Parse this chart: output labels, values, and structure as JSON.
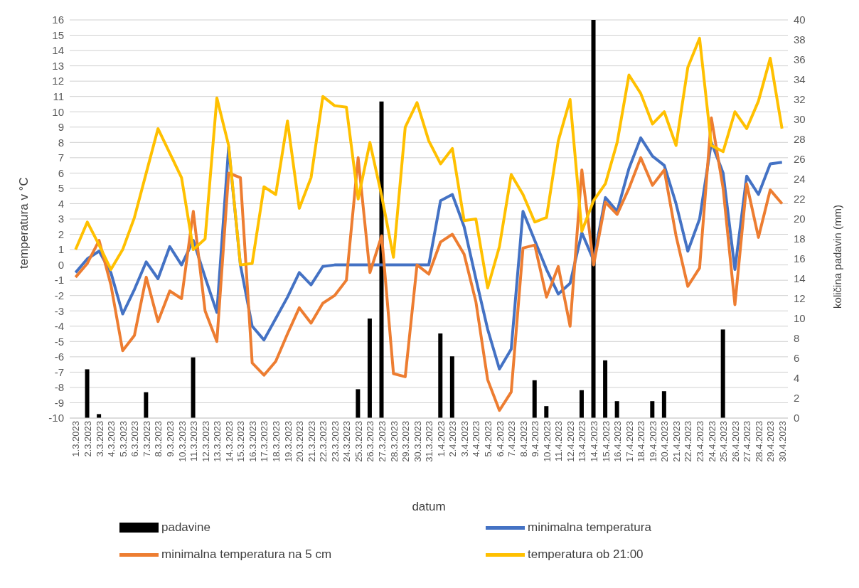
{
  "chart_data": {
    "type": "line",
    "xlabel": "datum",
    "ylabel": "temperatura v °C",
    "y2label": "količina padavin (mm)",
    "categories": [
      "1.3.2023",
      "2.3.2023",
      "3.3.2023",
      "4.3.2023",
      "5.3.2023",
      "6.3.2023",
      "7.3.2023",
      "8.3.2023",
      "9.3.2023",
      "10.3.2023",
      "11.3.2023",
      "12.3.2023",
      "13.3.2023",
      "14.3.2023",
      "15.3.2023",
      "16.3.2023",
      "17.3.2023",
      "18.3.2023",
      "19.3.2023",
      "20.3.2023",
      "21.3.2023",
      "22.3.2023",
      "23.3.2023",
      "24.3.2023",
      "25.3.2023",
      "26.3.2023",
      "27.3.2023",
      "28.3.2023",
      "29.3.2023",
      "30.3.2023",
      "31.3.2023",
      "1.4.2023",
      "2.4.2023",
      "3.4.2023",
      "4.4.2023",
      "5.4.2023",
      "6.4.2023",
      "7.4.2023",
      "8.4.2023",
      "9.4.2023",
      "10.4.2023",
      "11.4.2023",
      "12.4.2023",
      "13.4.2023",
      "14.4.2023",
      "15.4.2023",
      "16.4.2023",
      "17.4.2023",
      "18.4.2023",
      "19.4.2023",
      "20.4.2023",
      "21.4.2023",
      "22.4.2023",
      "23.4.2023",
      "24.4.2023",
      "25.4.2023",
      "26.4.2023",
      "27.4.2023",
      "28.4.2023",
      "29.4.2023",
      "30.4.2023"
    ],
    "series": [
      {
        "name": "padavine",
        "type": "bar",
        "axis": "y2",
        "color": "#000000",
        "values": [
          0,
          4.9,
          0.4,
          0,
          0,
          0,
          2.6,
          0,
          0,
          0,
          6.1,
          0,
          0,
          0,
          0,
          0,
          0,
          0,
          0,
          0,
          0,
          0,
          0,
          0,
          2.9,
          10.0,
          31.8,
          0,
          0,
          0,
          0,
          8.5,
          6.2,
          0,
          0,
          0,
          0,
          0,
          0,
          3.8,
          1.2,
          0,
          0,
          2.8,
          40,
          5.8,
          1.7,
          0,
          0,
          1.7,
          2.7,
          0,
          0,
          0,
          0,
          8.9,
          0,
          0,
          0,
          0,
          0
        ]
      },
      {
        "name": "minimalna temperatura",
        "color": "#4472c4",
        "values": [
          -0.5,
          0.4,
          0.9,
          -0.5,
          -3.2,
          -1.6,
          0.2,
          -0.9,
          1.2,
          0.0,
          1.6,
          -0.8,
          -3.1,
          7.7,
          0.0,
          -4.0,
          -4.9,
          -3.5,
          -2.1,
          -0.5,
          -1.3,
          -0.1,
          0.0,
          0.0,
          0.0,
          0.0,
          0.0,
          0.0,
          0.0,
          0.0,
          0.0,
          4.2,
          4.6,
          2.5,
          -0.9,
          -4.2,
          -6.8,
          -5.5,
          3.5,
          1.6,
          -0.3,
          -1.9,
          -1.2,
          2.1,
          0.3,
          4.4,
          3.5,
          6.3,
          8.3,
          7.1,
          6.5,
          4.0,
          0.9,
          3.0,
          8.0,
          6.0,
          -0.3,
          5.8,
          4.6,
          6.6,
          6.7
        ]
      },
      {
        "name": "minimalna temperatura na 5 cm",
        "color": "#ed7d31",
        "values": [
          -0.8,
          0.1,
          1.6,
          -1.3,
          -5.6,
          -4.6,
          -0.8,
          -3.7,
          -1.7,
          -2.2,
          3.5,
          -3.0,
          -5.0,
          6.0,
          5.7,
          -6.4,
          -7.2,
          -6.3,
          -4.5,
          -2.8,
          -3.8,
          -2.5,
          -2.0,
          -1.0,
          7.0,
          -0.5,
          1.9,
          -7.1,
          -7.3,
          0.0,
          -0.6,
          1.5,
          2.0,
          0.7,
          -2.4,
          -7.5,
          -9.5,
          -8.3,
          1.1,
          1.3,
          -2.1,
          -0.1,
          -4.0,
          6.2,
          0.0,
          4.1,
          3.3,
          5.0,
          7.0,
          5.2,
          6.2,
          1.9,
          -1.4,
          -0.2,
          9.6,
          5.0,
          -2.6,
          5.3,
          1.8,
          4.9,
          4.0
        ]
      },
      {
        "name": "temperatura ob 21:00",
        "color": "#ffc000",
        "values": [
          1.0,
          2.8,
          1.3,
          -0.3,
          1.0,
          3.1,
          6.0,
          8.9,
          7.3,
          5.7,
          1.0,
          1.7,
          10.9,
          7.8,
          0.0,
          0.1,
          5.1,
          4.6,
          9.4,
          3.7,
          5.7,
          11.0,
          10.4,
          10.3,
          4.3,
          8.0,
          4.5,
          0.5,
          9.0,
          10.6,
          8.1,
          6.6,
          7.6,
          2.9,
          3.0,
          -1.5,
          1.2,
          5.9,
          4.6,
          2.8,
          3.1,
          8.1,
          10.8,
          2.2,
          4.2,
          5.3,
          8.0,
          12.4,
          11.2,
          9.2,
          10.0,
          7.8,
          12.9,
          14.8,
          7.8,
          7.4,
          10.0,
          8.9,
          10.7,
          13.5,
          8.9
        ]
      }
    ],
    "ylim": [
      -10,
      16
    ],
    "yticks": [
      -10,
      -9,
      -8,
      -7,
      -6,
      -5,
      -4,
      -3,
      -2,
      -1,
      0,
      1,
      2,
      3,
      4,
      5,
      6,
      7,
      8,
      9,
      10,
      11,
      12,
      13,
      14,
      15,
      16
    ],
    "y2lim": [
      0,
      40
    ],
    "y2ticks": [
      0,
      2,
      4,
      6,
      8,
      10,
      12,
      14,
      16,
      18,
      20,
      22,
      24,
      26,
      28,
      30,
      32,
      34,
      36,
      38,
      40
    ],
    "grid": "y",
    "legend": "bottom",
    "marker": "none",
    "line_style": "solid"
  }
}
